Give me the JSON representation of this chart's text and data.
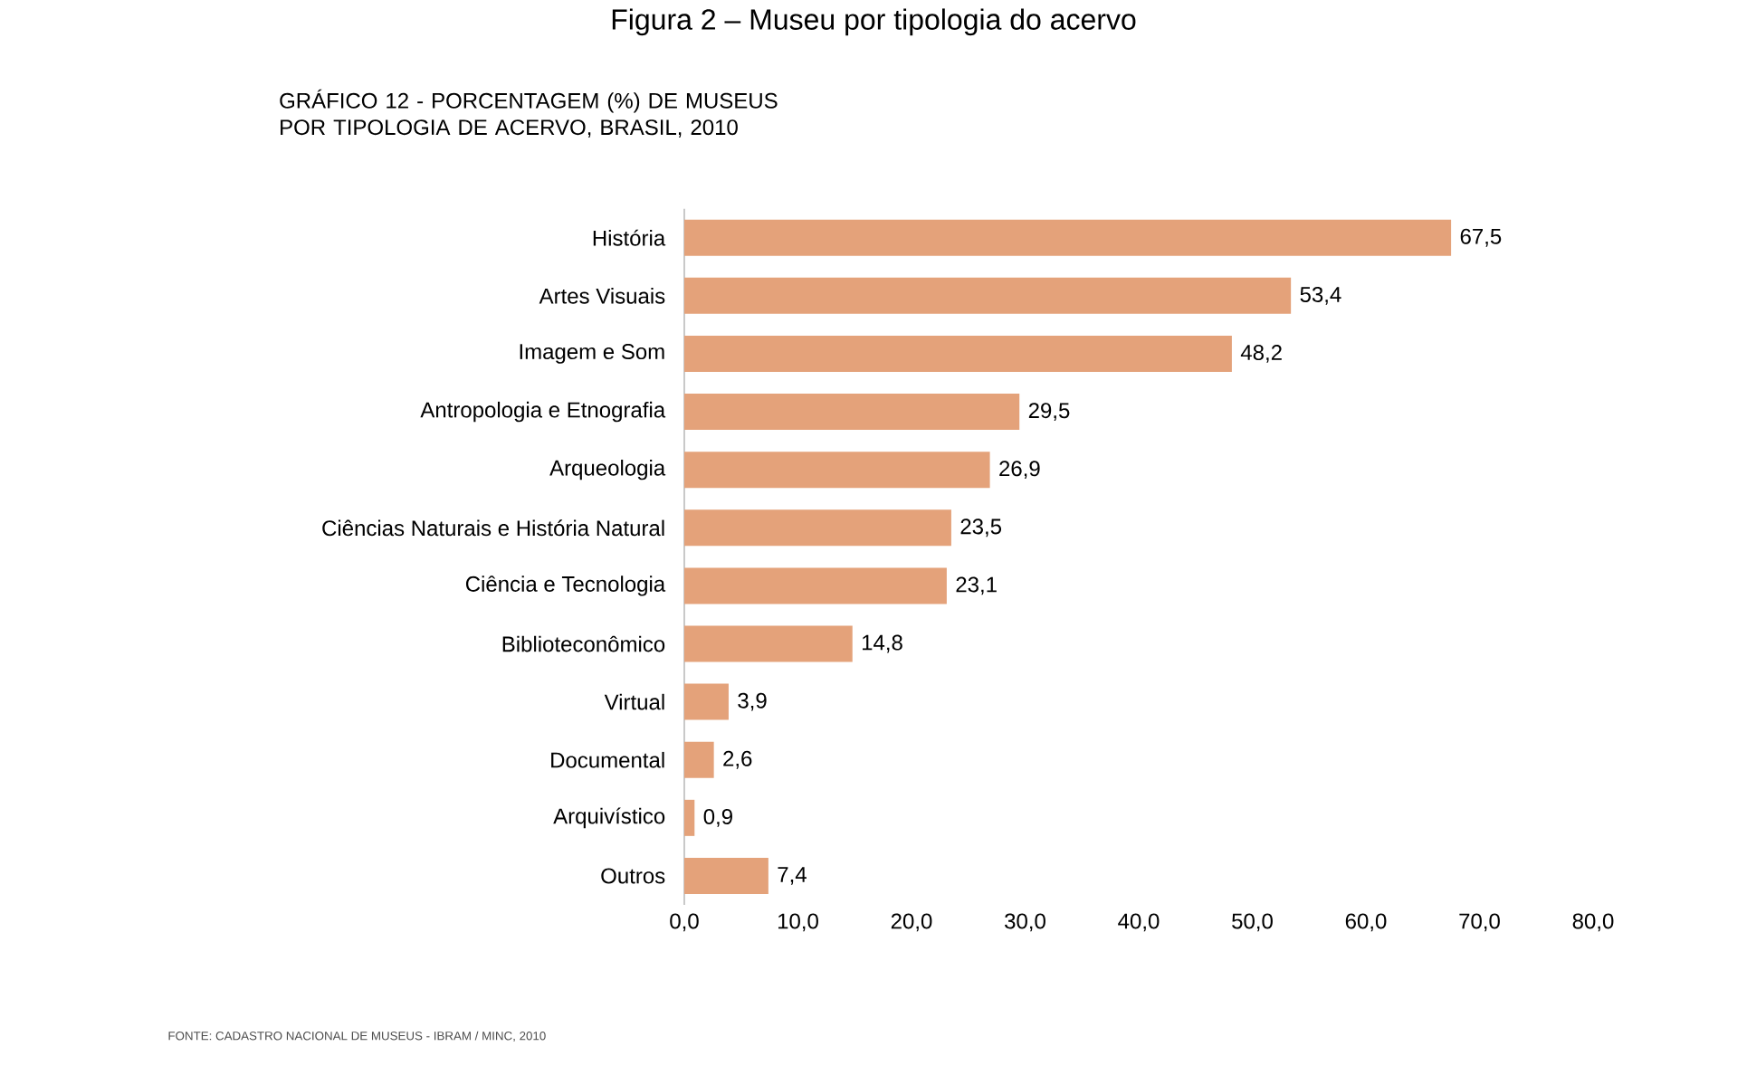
{
  "chart_data": {
    "type": "bar",
    "orientation": "horizontal",
    "title": "Figura 2 – Museu por tipologia do acervo",
    "subtitle": "GRÁFICO 12 - PORCENTAGEM (%) DE MUSEUS POR TIPOLOGIA DE ACERVO, BRASIL, 2010",
    "categories": [
      "História",
      "Artes Visuais",
      "Imagem e Som",
      "Antropologia e Etnografia",
      "Arqueologia",
      "Ciências Naturais e História Natural",
      "Ciência e Tecnologia",
      "Biblioteconômico",
      "Virtual",
      "Documental",
      "Arquivístico",
      "Outros"
    ],
    "values": [
      67.5,
      53.4,
      48.2,
      29.5,
      26.9,
      23.5,
      23.1,
      14.8,
      3.9,
      2.6,
      0.9,
      7.4
    ],
    "value_labels": [
      "67,5",
      "53,4",
      "48,2",
      "29,5",
      "26,9",
      "23,5",
      "23,1",
      "14,8",
      "3,9",
      "2,6",
      "0,9",
      "7,4"
    ],
    "color": "#e4a27a",
    "xlim": [
      0,
      80
    ],
    "xticks": [
      {
        "value": 0,
        "label": "0,0"
      },
      {
        "value": 10,
        "label": "10,0"
      },
      {
        "value": 20,
        "label": "20,0"
      },
      {
        "value": 30,
        "label": "30,0"
      },
      {
        "value": 40,
        "label": "40,0"
      },
      {
        "value": 50,
        "label": "50,0"
      },
      {
        "value": 60,
        "label": "60,0"
      },
      {
        "value": 70,
        "label": "70,0"
      },
      {
        "value": 80,
        "label": "80,0"
      }
    ],
    "grid": false,
    "annotations": [
      "FONTE: CADASTRO NACIONAL DE MUSEUS - IBRAM / MINC, 2010"
    ]
  }
}
